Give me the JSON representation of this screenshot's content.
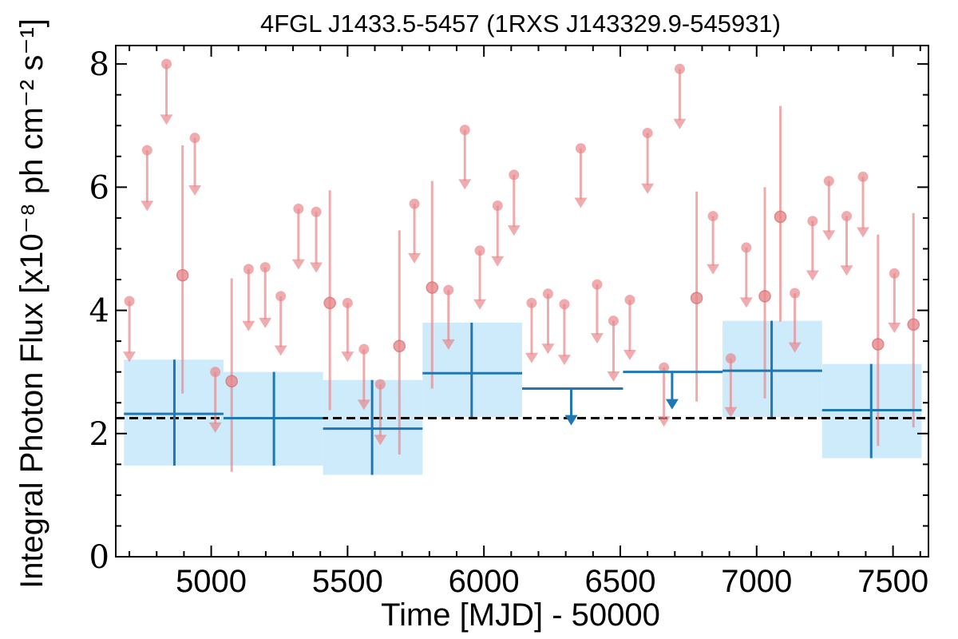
{
  "chart_data": {
    "type": "scatter",
    "title": "4FGL J1433.5-5457 (1RXS J143329.9-545931)",
    "xlabel": "Time [MJD] - 50000",
    "ylabel": "Integral Photon Flux [x10⁻⁸ ph cm⁻² s⁻¹]",
    "xlim": [
      4650,
      7630
    ],
    "ylim": [
      0,
      8.3
    ],
    "x_ticks": [
      5000,
      5500,
      6000,
      6500,
      7000,
      7500
    ],
    "y_ticks": [
      0,
      2,
      4,
      6,
      8
    ],
    "x_tick_labels": [
      "5000",
      "5500",
      "6000",
      "6500",
      "7000",
      "7500"
    ],
    "y_tick_labels": [
      "0",
      "2",
      "4",
      "6",
      "8"
    ],
    "reference_line": {
      "y": 2.25,
      "style": "dashed",
      "color": "#000000"
    },
    "colors": {
      "short_points": "#e8888a",
      "long_bins": "#1f77b4",
      "long_bands": "#cdebfb"
    },
    "series": [
      {
        "type": "upper_limit",
        "values": [
          {
            "x": 4700,
            "y": 4.15,
            "y_arrow": 3.2
          },
          {
            "x": 4765,
            "y": 6.6,
            "y_arrow": 5.65
          },
          {
            "x": 4836,
            "y": 8.0,
            "y_arrow": 7.05
          },
          {
            "x": 4940,
            "y": 6.8,
            "y_arrow": 5.9
          },
          {
            "x": 5015,
            "y": 3.0,
            "y_arrow": 2.05
          },
          {
            "x": 5137,
            "y": 4.67,
            "y_arrow": 3.7
          },
          {
            "x": 5198,
            "y": 4.7,
            "y_arrow": 3.75
          },
          {
            "x": 5255,
            "y": 4.23,
            "y_arrow": 3.3
          },
          {
            "x": 5320,
            "y": 5.65,
            "y_arrow": 4.7
          },
          {
            "x": 5385,
            "y": 5.6,
            "y_arrow": 4.65
          },
          {
            "x": 5500,
            "y": 4.12,
            "y_arrow": 3.2
          },
          {
            "x": 5560,
            "y": 3.37,
            "y_arrow": 2.42
          },
          {
            "x": 5620,
            "y": 2.8,
            "y_arrow": 1.85
          },
          {
            "x": 5745,
            "y": 5.73,
            "y_arrow": 4.8
          },
          {
            "x": 5870,
            "y": 4.33,
            "y_arrow": 3.4
          },
          {
            "x": 5930,
            "y": 6.93,
            "y_arrow": 6.0
          },
          {
            "x": 5985,
            "y": 4.97,
            "y_arrow": 4.05
          },
          {
            "x": 6050,
            "y": 5.7,
            "y_arrow": 4.75
          },
          {
            "x": 6110,
            "y": 6.2,
            "y_arrow": 5.25
          },
          {
            "x": 6175,
            "y": 4.12,
            "y_arrow": 3.18
          },
          {
            "x": 6235,
            "y": 4.27,
            "y_arrow": 3.33
          },
          {
            "x": 6295,
            "y": 4.1,
            "y_arrow": 3.15
          },
          {
            "x": 6355,
            "y": 6.63,
            "y_arrow": 5.7
          },
          {
            "x": 6415,
            "y": 4.42,
            "y_arrow": 3.5
          },
          {
            "x": 6475,
            "y": 3.83,
            "y_arrow": 2.88
          },
          {
            "x": 6535,
            "y": 4.17,
            "y_arrow": 3.23
          },
          {
            "x": 6600,
            "y": 6.88,
            "y_arrow": 5.93
          },
          {
            "x": 6660,
            "y": 3.07,
            "y_arrow": 2.15
          },
          {
            "x": 6718,
            "y": 7.92,
            "y_arrow": 6.98
          },
          {
            "x": 6840,
            "y": 5.53,
            "y_arrow": 4.62
          },
          {
            "x": 6905,
            "y": 3.22,
            "y_arrow": 2.3
          },
          {
            "x": 6962,
            "y": 5.02,
            "y_arrow": 4.08
          },
          {
            "x": 7140,
            "y": 4.28,
            "y_arrow": 3.35
          },
          {
            "x": 7205,
            "y": 5.45,
            "y_arrow": 4.52
          },
          {
            "x": 7265,
            "y": 6.1,
            "y_arrow": 5.17
          },
          {
            "x": 7330,
            "y": 5.53,
            "y_arrow": 4.6
          },
          {
            "x": 7390,
            "y": 6.17,
            "y_arrow": 5.22
          },
          {
            "x": 7505,
            "y": 4.6,
            "y_arrow": 3.67
          }
        ]
      },
      {
        "type": "detection",
        "values": [
          {
            "x": 4895,
            "y": 4.57,
            "ylow": 2.65,
            "yhigh": 6.68
          },
          {
            "x": 5075,
            "y": 2.85,
            "ylow": 1.38,
            "yhigh": 4.52
          },
          {
            "x": 5435,
            "y": 4.12,
            "ylow": 2.38,
            "yhigh": 5.95
          },
          {
            "x": 5690,
            "y": 3.42,
            "ylow": 1.66,
            "yhigh": 5.3
          },
          {
            "x": 5810,
            "y": 4.37,
            "ylow": 2.73,
            "yhigh": 6.1
          },
          {
            "x": 6780,
            "y": 4.2,
            "ylow": 2.52,
            "yhigh": 5.93
          },
          {
            "x": 7030,
            "y": 4.23,
            "ylow": 2.57,
            "yhigh": 6.0
          },
          {
            "x": 7087,
            "y": 5.52,
            "ylow": 3.82,
            "yhigh": 7.32
          },
          {
            "x": 7445,
            "y": 3.45,
            "ylow": 1.8,
            "yhigh": 5.23
          },
          {
            "x": 7575,
            "y": 3.77,
            "ylow": 2.1,
            "yhigh": 5.58
          }
        ]
      },
      {
        "type": "binned",
        "values": [
          {
            "x0": 4680,
            "x1": 5045,
            "xc": 4865,
            "y": 2.32,
            "ylow": 1.48,
            "yhigh": 3.2,
            "upper_limit": false
          },
          {
            "x0": 5045,
            "x1": 5410,
            "xc": 5230,
            "y": 2.25,
            "ylow": 1.48,
            "yhigh": 3.0,
            "upper_limit": false
          },
          {
            "x0": 5410,
            "x1": 5775,
            "xc": 5590,
            "y": 2.08,
            "ylow": 1.33,
            "yhigh": 2.87,
            "upper_limit": false
          },
          {
            "x0": 5775,
            "x1": 6140,
            "xc": 5955,
            "y": 2.98,
            "ylow": 2.27,
            "yhigh": 3.8,
            "upper_limit": false
          },
          {
            "x0": 6140,
            "x1": 6510,
            "xc": 6320,
            "y": 2.73,
            "y_arrow": 2.17,
            "upper_limit": true
          },
          {
            "x0": 6510,
            "x1": 6875,
            "xc": 6690,
            "y": 3.0,
            "y_arrow": 2.43,
            "upper_limit": true
          },
          {
            "x0": 6875,
            "x1": 7240,
            "xc": 7055,
            "y": 3.02,
            "ylow": 2.27,
            "yhigh": 3.83,
            "upper_limit": false
          },
          {
            "x0": 7240,
            "x1": 7605,
            "xc": 7420,
            "y": 2.38,
            "ylow": 1.6,
            "yhigh": 3.13,
            "upper_limit": false
          }
        ]
      }
    ]
  }
}
